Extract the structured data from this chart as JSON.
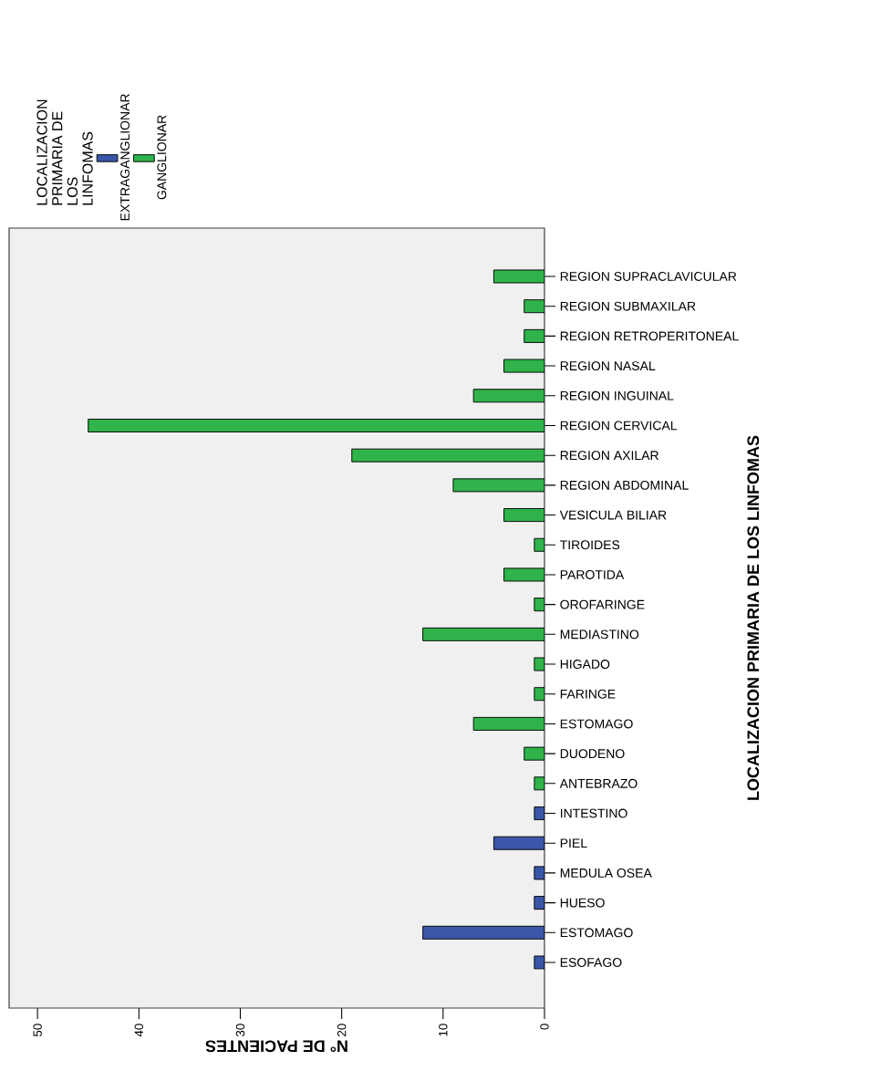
{
  "chart_data": {
    "type": "bar",
    "orientation": "horizontal",
    "ylabel": "LOCALIZACION PRIMARIA DE LOS LINFOMAS",
    "xlabel": "N° DE PACIENTES",
    "legend_title": "LOCALIZACION PRIMARIA DE LOS LINFOMAS",
    "categories": [
      "REGION SUPRACLAVICULAR",
      "REGION SUBMAXILAR",
      "REGION RETROPERITONEAL",
      "REGION NASAL",
      "REGION INGUINAL",
      "REGION CERVICAL",
      "REGION AXILAR",
      "REGION ABDOMINAL",
      "VESICULA BILIAR",
      "TIROIDES",
      "PAROTIDA",
      "OROFARINGE",
      "MEDIASTINO",
      "HIGADO",
      "FARINGE",
      "ESTOMAGO",
      "DUODENO",
      "ANTEBRAZO",
      "INTESTINO",
      "PIEL",
      "MEDULA OSEA",
      "HUESO",
      "ESTOMAGO",
      "ESOFAGO"
    ],
    "series": [
      {
        "name": "EXTRAGANGLIONAR",
        "color": "#3a56a8",
        "values": [
          null,
          null,
          null,
          null,
          null,
          null,
          null,
          null,
          null,
          null,
          null,
          null,
          null,
          null,
          null,
          null,
          null,
          null,
          1,
          5,
          1,
          1,
          12,
          1
        ]
      },
      {
        "name": "GANGLIONAR",
        "color": "#2fb34a",
        "values": [
          5,
          2,
          2,
          4,
          7,
          45,
          19,
          9,
          4,
          1,
          4,
          1,
          12,
          1,
          1,
          7,
          2,
          1,
          null,
          null,
          null,
          null,
          null,
          null
        ]
      }
    ],
    "xlim": [
      52.8,
      0
    ],
    "xticks": [
      0,
      10,
      20,
      30,
      40,
      50
    ],
    "legend": "top left"
  }
}
